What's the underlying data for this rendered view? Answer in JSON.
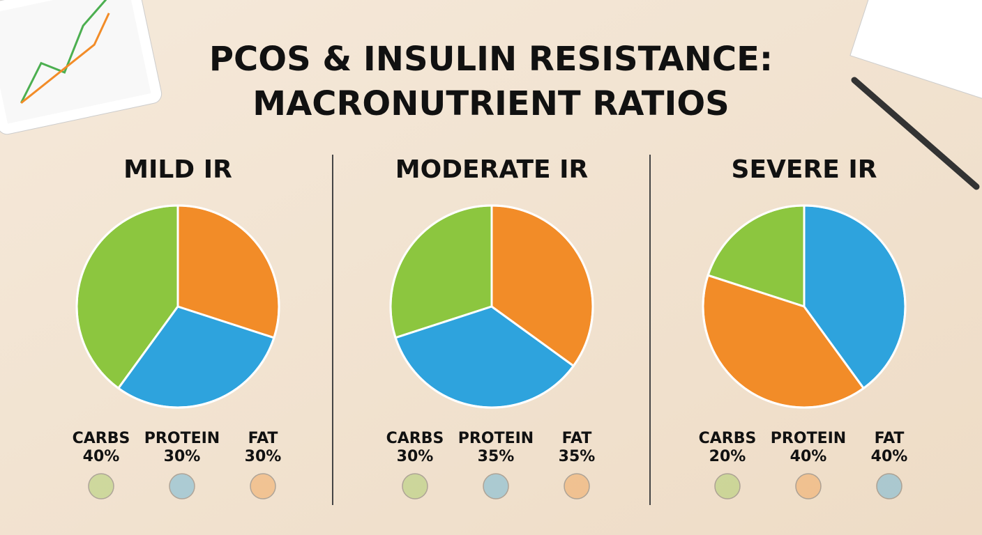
{
  "title_lines": [
    "PCOS & INSULIN RESISTANCE:",
    "MACRONUTRIENT RATIOS"
  ],
  "chart_data": [
    {
      "type": "pie",
      "title": "MILD IR",
      "categories": [
        "CARBS",
        "PROTEIN",
        "FAT"
      ],
      "values": [
        40,
        30,
        30
      ],
      "value_labels": [
        "40%",
        "30%",
        "30%"
      ],
      "colors": [
        "#8cc63f",
        "#2ea3dd",
        "#f28c28"
      ]
    },
    {
      "type": "pie",
      "title": "MODERATE IR",
      "categories": [
        "CARBS",
        "PROTEIN",
        "FAT"
      ],
      "values": [
        30,
        35,
        35
      ],
      "value_labels": [
        "30%",
        "35%",
        "35%"
      ],
      "colors": [
        "#8cc63f",
        "#2ea3dd",
        "#f28c28"
      ]
    },
    {
      "type": "pie",
      "title": "SEVERE IR",
      "categories": [
        "CARBS",
        "PROTEIN",
        "FAT"
      ],
      "values": [
        20,
        40,
        40
      ],
      "value_labels": [
        "20%",
        "40%",
        "40%"
      ],
      "colors": [
        "#8cc63f",
        "#f28c28",
        "#2ea3dd"
      ]
    }
  ]
}
